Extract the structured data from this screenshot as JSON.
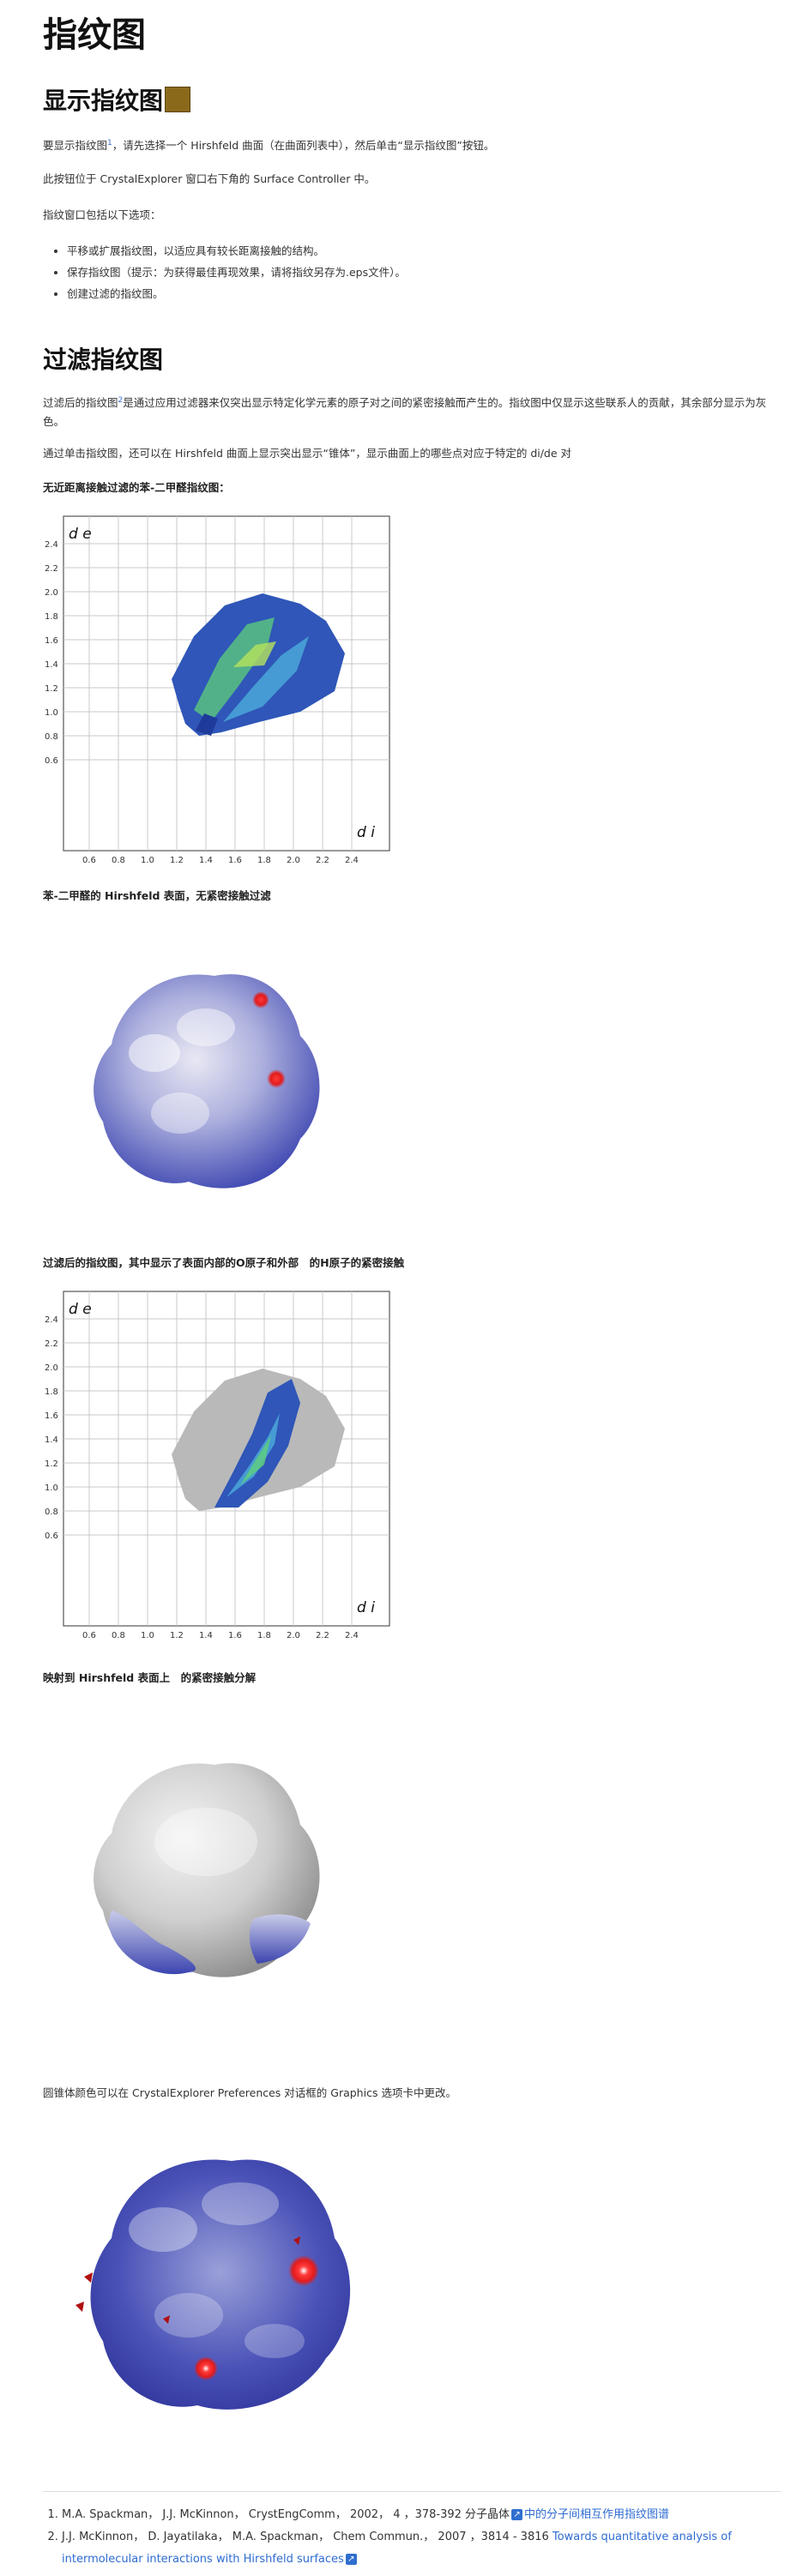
{
  "page": {
    "title": "指纹图",
    "section1": {
      "heading": "显示指纹图",
      "p1_a": "要显示指纹图",
      "p1_sup": "1",
      "p1_b": "，请先选择一个 Hirshfeld 曲面（在曲面列表中），然后单击“显示指纹图”按钮。",
      "p2": "此按钮位于 CrystalExplorer 窗口右下角的 Surface Controller 中。",
      "p3": "指纹窗口包括以下选项：",
      "options": [
        "平移或扩展指纹图，以适应具有较长距离接触的结构。",
        "保存指纹图（提示：为获得最佳再现效果，请将指纹另存为.eps文件）。",
        "创建过滤的指纹图。"
      ]
    },
    "section2": {
      "heading": "过滤指纹图",
      "p1_a": "过滤后的指纹图",
      "p1_sup": "2",
      "p1_b": "是通过应用过滤器来仅突出显示特定化学元素的原子对之间的紧密接触而产生的。指纹图中仅显示这些联系人的贡献，其余部分显示为灰色。",
      "p2": "通过单击指纹图，还可以在 Hirshfeld 曲面上显示突出显示“锥体”，显示曲面上的哪些点对应于特定的 di/de 对",
      "caption1": "无近距离接触过滤的苯-二甲醛指纹图：",
      "caption2": "苯-二甲醛的 Hirshfeld 表面，无紧密接触过滤",
      "caption3": "过滤后的指纹图，其中显示了表面内部的O原子和外部　的H原子的紧密接触",
      "caption4": "映射到 Hirshfeld 表面上　的紧密接触分解",
      "p3": "圆锥体颜色可以在 CrystalExplorer Preferences 对话框的 Graphics 选项卡中更改。"
    },
    "plot": {
      "de_label": "d e",
      "di_label": "d i",
      "y_ticks": [
        "2.4",
        "2.2",
        "2.0",
        "1.8",
        "1.6",
        "1.4",
        "1.2",
        "1.0",
        "0.8",
        "0.6"
      ],
      "x_ticks": [
        "0.6",
        "0.8",
        "1.0",
        "1.2",
        "1.4",
        "1.6",
        "1.8",
        "2.0",
        "2.2",
        "2.4"
      ]
    },
    "references": [
      {
        "text": "M.A. Spackman， J.J. McKinnon， CrystEngComm， 2002， 4 ，378-392 分子晶体",
        "link": "中的分子间相互作用指纹图谱"
      },
      {
        "text": "J.J. McKinnon， D. Jayatilaka， M.A. Spackman， Chem Commun.， 2007 ，3814 - 3816",
        "link": "Towards quantitative analysis of intermolecular interactions with Hirshfeld surfaces"
      }
    ]
  },
  "colors": {
    "fingerprint_blue": "#2f56b8",
    "fingerprint_green": "#5fd07a",
    "gray_filtered": "#b9b9b9",
    "surface_blue": "#3c45b0",
    "contact_red": "#e31b1b",
    "link_blue": "#2e6bd1"
  }
}
